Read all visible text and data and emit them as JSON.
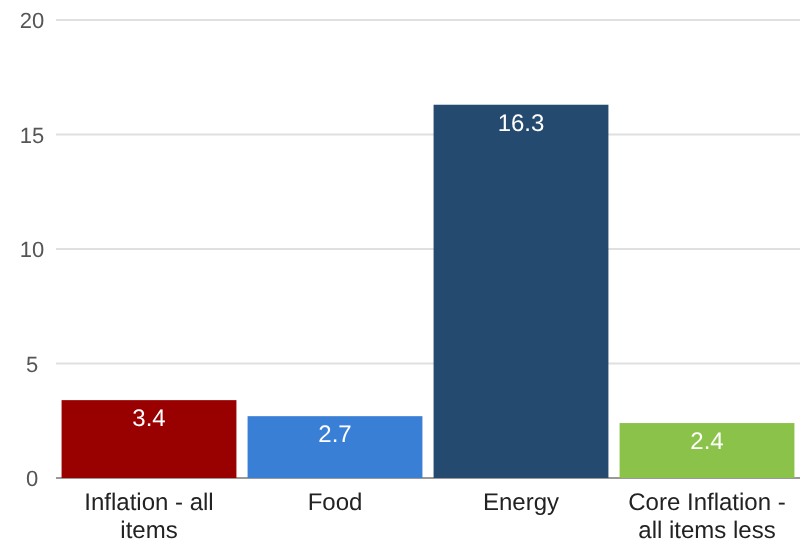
{
  "chart_data": {
    "type": "bar",
    "categories": [
      "Inflation - all items",
      "Food",
      "Energy",
      "Core Inflation - all items less"
    ],
    "values": [
      3.4,
      2.7,
      16.3,
      2.4
    ],
    "colors": [
      "#990000",
      "#3a7fd6",
      "#254a6f",
      "#8bc34a"
    ],
    "ylim": [
      0,
      20
    ],
    "yticks": [
      0,
      5,
      10,
      15,
      20
    ],
    "grid": "y",
    "data_labels": true
  }
}
